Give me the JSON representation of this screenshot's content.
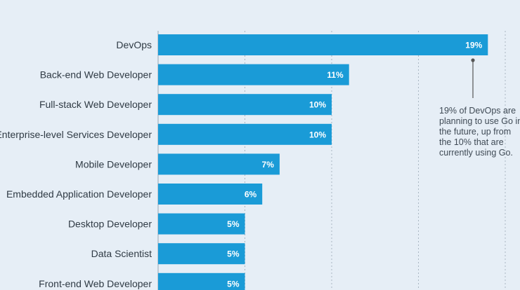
{
  "chart_data": {
    "type": "bar",
    "orientation": "horizontal",
    "categories": [
      "DevOps",
      "Back-end Web Developer",
      "Full-stack Web Developer",
      "Enterprise-level Services Developer",
      "Mobile Developer",
      "Embedded Application Developer",
      "Desktop Developer",
      "Data Scientist",
      "Front-end Web Developer"
    ],
    "values": [
      19,
      11,
      10,
      10,
      7,
      6,
      5,
      5,
      5
    ],
    "value_labels": [
      "19%",
      "11%",
      "10%",
      "10%",
      "7%",
      "6%",
      "5%",
      "5%",
      "5%"
    ],
    "title": "",
    "xlabel": "",
    "ylabel": "",
    "xlim": [
      0,
      20
    ],
    "grid": true,
    "bar_color": "#1a9bd7",
    "annotation": {
      "target_category": "DevOps",
      "lines": [
        "19% of DevOps are",
        "planning to use Go in",
        "the future, up from",
        "the 10% that are",
        "currently using Go."
      ]
    }
  }
}
